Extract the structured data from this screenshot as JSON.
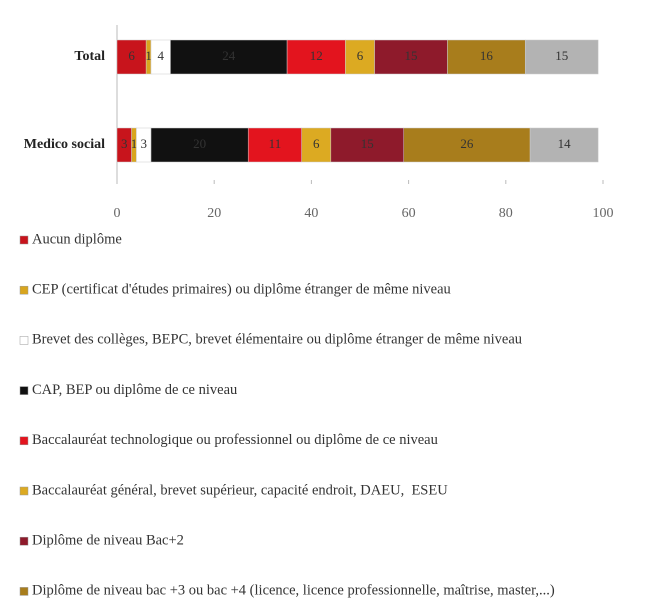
{
  "chart_data": {
    "type": "stacked-barh",
    "categories": [
      "Total",
      "Medico social"
    ],
    "series": [
      {
        "name": "Aucun diplôme",
        "color": "#c8141c",
        "values": [
          6,
          3
        ]
      },
      {
        "name": "CEP (certificat d'études primaires) ou diplôme étranger de même niveau",
        "color": "#d8a51e",
        "values": [
          1,
          1
        ]
      },
      {
        "name": "Brevet des collèges, BEPC, brevet élémentaire ou diplôme étranger de même niveau",
        "color": "#ffffff",
        "values": [
          4,
          3
        ]
      },
      {
        "name": "CAP, BEP ou diplôme de ce niveau",
        "color": "#111111",
        "values": [
          24,
          20
        ]
      },
      {
        "name": "Baccalauréat technologique ou professionnel ou diplôme de ce niveau",
        "color": "#e3141e",
        "values": [
          12,
          11
        ]
      },
      {
        "name": "Baccalauréat général, brevet supérieur, capacité endroit, DAEU,  ESEU",
        "color": "#dcaa22",
        "values": [
          6,
          6
        ]
      },
      {
        "name": "Diplôme de niveau Bac+2",
        "color": "#8e1a2b",
        "values": [
          15,
          15
        ]
      },
      {
        "name": "Diplôme de niveau bac +3 ou bac +4 (licence, licence professionnelle, maîtrise, master,...)",
        "color": "#a87d1c",
        "values": [
          16,
          26
        ]
      },
      {
        "color": "#b3b3b3",
        "values": [
          15,
          14
        ]
      }
    ],
    "xlim": [
      0,
      100
    ],
    "xticks": [
      0,
      20,
      40,
      60,
      80,
      100
    ],
    "grid": false,
    "legend": "bottom"
  }
}
